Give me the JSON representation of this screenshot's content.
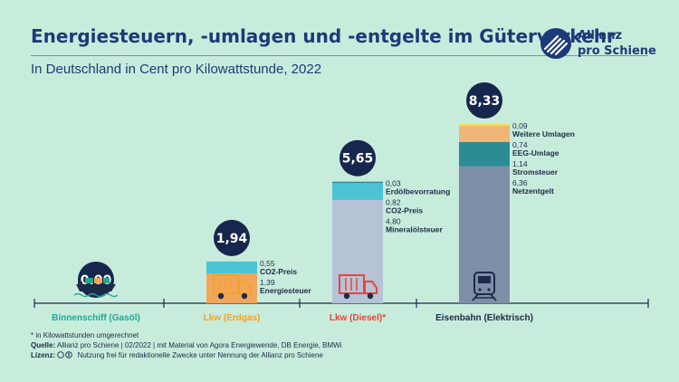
{
  "brand": {
    "line1": "Allianz",
    "line2": "pro Schiene"
  },
  "footer": {
    "note": "* in Kilowattstunden umgerechnet",
    "source_label": "Quelle:",
    "source_text": "Allianz pro Schiene | 02/2022 | mit Material von Agora Energiewende, DB Energie, BMWi",
    "license_label": "Lizenz:",
    "license_text": "Nutzung frei für redaktionelle Zwecke unter Nennung der Allianz pro Schiene"
  },
  "chart_data": {
    "type": "bar",
    "stacked": true,
    "title": "Energiesteuern, -umlagen und -entgelte im Güterverkehr",
    "subtitle": "In Deutschland in Cent pro Kilowattstunde, 2022",
    "xlabel": "",
    "ylabel": "",
    "categories": [
      {
        "label": "Binnenschiff (Gasöl)",
        "color": "#23a88f",
        "icon": "ship-icon",
        "total_label": "0,00"
      },
      {
        "label": "Lkw (Erdgas)",
        "color": "#f5a227",
        "icon": "truck-icon",
        "total_label": "1,94"
      },
      {
        "label": "Lkw (Diesel)*",
        "color": "#e8443a",
        "icon": "truck-icon",
        "total_label": "5,65"
      },
      {
        "label": "Eisenbahn (Elektrisch)",
        "color": "#1d2a48",
        "icon": "train-icon",
        "total_label": "8,33"
      }
    ],
    "totals": [
      0.0,
      1.94,
      5.65,
      8.33
    ],
    "segments": [
      [],
      [
        {
          "label": "Energiesteuer",
          "value": 1.39,
          "value_label": "1,39",
          "color": "#f0a75a"
        },
        {
          "label": "CO2-Preis",
          "value": 0.55,
          "value_label": "0,55",
          "color": "#4cc3d4"
        }
      ],
      [
        {
          "label": "Mineralölsteuer",
          "value": 4.8,
          "value_label": "4,80",
          "color": "#b6c3d6"
        },
        {
          "label": "CO2-Preis",
          "value": 0.82,
          "value_label": "0,82",
          "color": "#4cc3d4"
        },
        {
          "label": "Erdölbevorratung",
          "value": 0.03,
          "value_label": "0,03",
          "color": "#2b8c94"
        }
      ],
      [
        {
          "label": "Netzentgelt",
          "value": 6.36,
          "value_label": "6,36",
          "color": "#7d8fa6"
        },
        {
          "label": "Stromsteuer",
          "value": 1.14,
          "value_label": "1,14",
          "color": "#2b8c94"
        },
        {
          "label": "EEG-Umlage",
          "value": 0.74,
          "value_label": "0,74",
          "color": "#f0b677"
        },
        {
          "label": "Weitere Umlagen",
          "value": 0.09,
          "value_label": "0,09",
          "color": "#f5e04a"
        }
      ]
    ],
    "circle_color": "#16264d",
    "ylim": [
      0,
      8.33
    ],
    "grid": false,
    "legend": "inline labels beside bars"
  }
}
